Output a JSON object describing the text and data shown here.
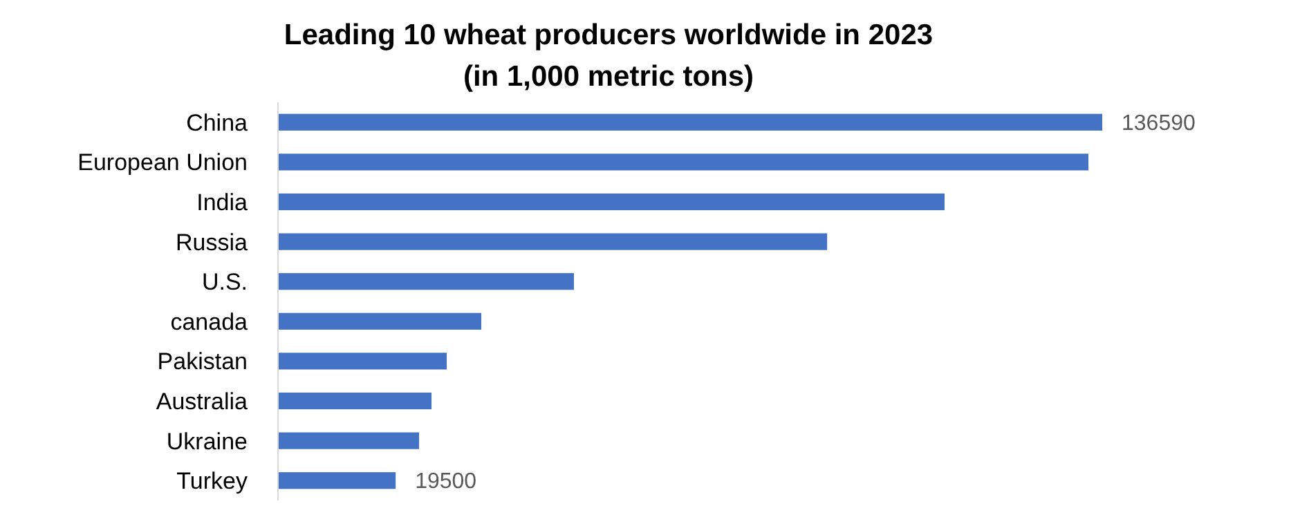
{
  "chart_data": {
    "type": "bar",
    "orientation": "horizontal",
    "title": "Leading 10 wheat producers worldwide in 2023\n(in 1,000 metric tons)",
    "categories": [
      "China",
      "European Union",
      "India",
      "Russia",
      "U.S.",
      "canada",
      "Pakistan",
      "Australia",
      "Ukraine",
      "Turkey"
    ],
    "values": [
      136590,
      134300,
      110460,
      91000,
      49040,
      33690,
      27960,
      25440,
      23380,
      19500
    ],
    "value_labels": [
      "136590",
      null,
      null,
      null,
      null,
      null,
      null,
      null,
      null,
      "19500"
    ],
    "color": "#4472c4"
  }
}
